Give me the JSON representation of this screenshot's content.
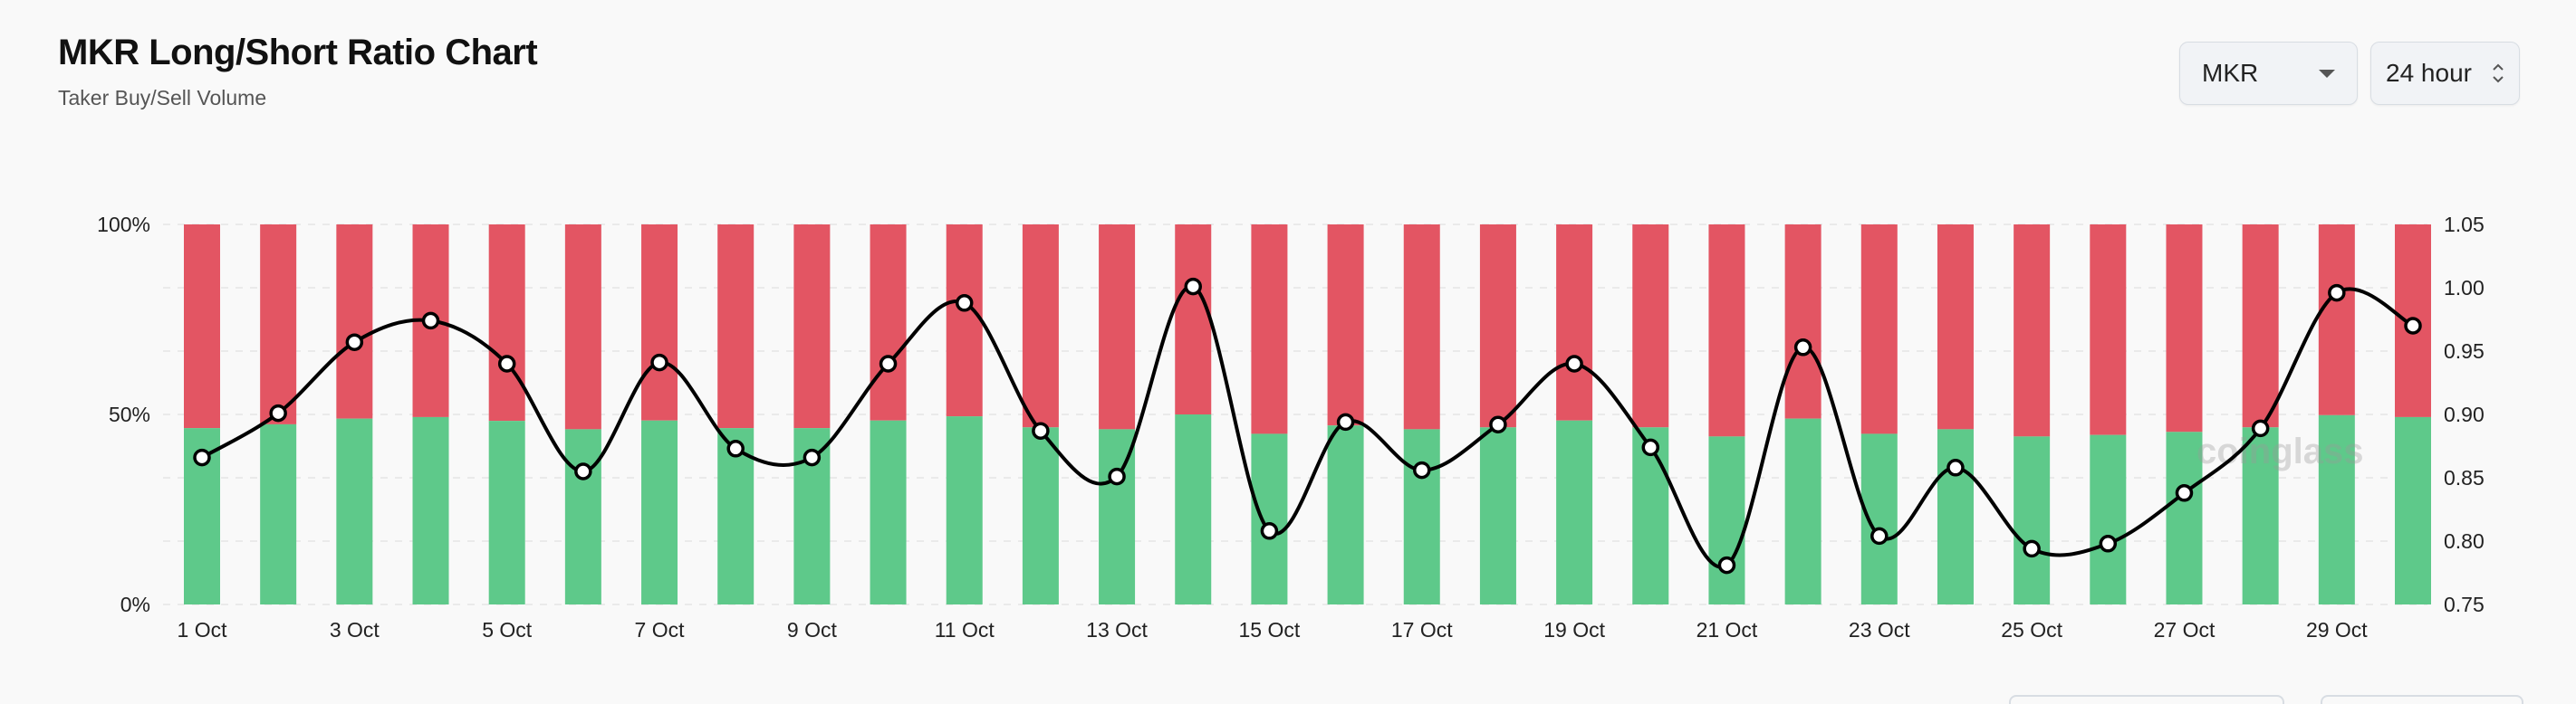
{
  "header": {
    "title": "MKR Long/Short Ratio Chart",
    "subtitle": "Taker Buy/Sell Volume"
  },
  "controls": {
    "symbol_value": "MKR",
    "period_value": "24 hour"
  },
  "watermark": {
    "text": "coinglass"
  },
  "colors": {
    "buy": "#5ec98a",
    "sell": "#e35563",
    "line": "#000000",
    "grid": "#e6e6e6",
    "background": "#f9f9f9"
  },
  "chart_data": {
    "type": "bar",
    "stacked": true,
    "percent_stacked": true,
    "categories": [
      "1 Oct",
      "2 Oct",
      "3 Oct",
      "4 Oct",
      "5 Oct",
      "6 Oct",
      "7 Oct",
      "8 Oct",
      "9 Oct",
      "10 Oct",
      "11 Oct",
      "12 Oct",
      "13 Oct",
      "14 Oct",
      "15 Oct",
      "16 Oct",
      "17 Oct",
      "18 Oct",
      "19 Oct",
      "20 Oct",
      "21 Oct",
      "22 Oct",
      "23 Oct",
      "24 Oct",
      "25 Oct",
      "26 Oct",
      "27 Oct",
      "28 Oct",
      "29 Oct",
      "30 Oct"
    ],
    "x_tick_labels": [
      "1 Oct",
      "3 Oct",
      "5 Oct",
      "7 Oct",
      "9 Oct",
      "11 Oct",
      "13 Oct",
      "15 Oct",
      "17 Oct",
      "19 Oct",
      "21 Oct",
      "23 Oct",
      "25 Oct",
      "27 Oct",
      "29 Oct"
    ],
    "series": [
      {
        "axis": "left",
        "values": [
          46.4,
          47.4,
          48.9,
          49.3,
          48.3,
          46.1,
          48.4,
          46.4,
          46.4,
          48.4,
          49.5,
          46.6,
          46.1,
          50.0,
          44.9,
          47.1,
          46.1,
          46.6,
          48.4,
          46.6,
          44.2,
          48.9,
          44.9,
          46.1,
          44.2,
          44.6,
          45.4,
          46.6,
          49.8,
          49.3
        ]
      },
      {
        "axis": "left",
        "values": [
          53.6,
          52.6,
          51.1,
          50.7,
          51.7,
          53.9,
          51.6,
          53.6,
          53.6,
          51.6,
          50.5,
          53.4,
          53.9,
          50.0,
          55.1,
          52.9,
          53.9,
          53.4,
          51.6,
          53.4,
          55.8,
          51.1,
          55.1,
          53.9,
          55.8,
          55.4,
          54.6,
          53.4,
          50.2,
          50.7
        ]
      },
      {
        "type": "line",
        "axis": "right",
        "values": [
          0.866,
          0.901,
          0.957,
          0.974,
          0.94,
          0.855,
          0.941,
          0.873,
          0.866,
          0.94,
          0.988,
          0.887,
          0.851,
          1.001,
          0.808,
          0.894,
          0.856,
          0.892,
          0.94,
          0.874,
          0.781,
          0.953,
          0.804,
          0.858,
          0.794,
          0.798,
          0.838,
          0.889,
          0.996,
          0.97
        ]
      }
    ],
    "left_axis": {
      "ticks": [
        "0%",
        "50%",
        "100%"
      ],
      "ylim": [
        0,
        100
      ]
    },
    "right_axis": {
      "ticks": [
        "0.75",
        "0.80",
        "0.85",
        "0.90",
        "0.95",
        "1.00",
        "1.05"
      ],
      "ylim": [
        0.75,
        1.05
      ]
    },
    "grid": true,
    "legend": "none"
  }
}
